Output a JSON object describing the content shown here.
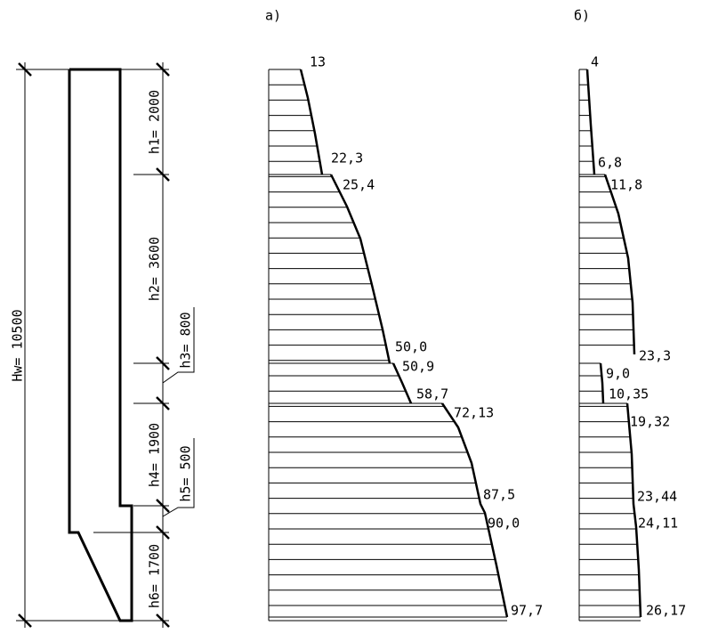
{
  "panel_labels": {
    "a": "а)",
    "b": "б)"
  },
  "dimensions": {
    "total": "Hw= 10500",
    "h1": "h1= 2000",
    "h2": "h2= 3600",
    "h3": "h3= 800",
    "h4": "h4= 1900",
    "h5": "h5= 500",
    "h6": "h6= 1700"
  },
  "diagram_a": {
    "labels": [
      "13",
      "22,3",
      "25,4",
      "50,0",
      "50,9",
      "58,7",
      "72,13",
      "87,5",
      "90,0",
      "97,7"
    ]
  },
  "diagram_b": {
    "labels": [
      "4",
      "6,8",
      "11,8",
      "23,3",
      "9,0",
      "10,35",
      "19,32",
      "23,44",
      "24,11",
      "26,17"
    ]
  }
}
